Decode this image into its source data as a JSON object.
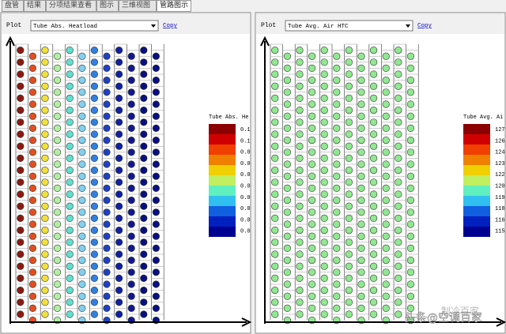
{
  "tabs": [
    "盘管",
    "结果",
    "分项结果查看",
    "图示",
    "三维视图",
    "管路图示"
  ],
  "active_tab": 5,
  "panels": [
    {
      "plot_label": "Plot",
      "selection": "Tube Abs. Heatload",
      "copy": "Copy",
      "legend_title": "Tube Abs. He",
      "legend_labels": [
        "0.1",
        "0.1",
        "0.0",
        "0.0",
        "0.0",
        "0.0",
        "0.0",
        "0.0",
        "0.0",
        "0.0"
      ]
    },
    {
      "plot_label": "Plot",
      "selection": "Tube Avg. Air HTC",
      "copy": "Copy",
      "legend_title": "Tube Avg. Ai",
      "legend_labels": [
        "127",
        "126",
        "124",
        "123",
        "122",
        "120",
        "119",
        "118",
        "116",
        "115"
      ]
    }
  ],
  "legend_colors": [
    "#8b0000",
    "#d00000",
    "#f04000",
    "#f08000",
    "#f0d000",
    "#c0f060",
    "#60f0c0",
    "#30c0f0",
    "#1060e0",
    "#0020c0",
    "#000090"
  ],
  "watermark": "头条@空调百家",
  "watermark2": "制冷百家"
}
